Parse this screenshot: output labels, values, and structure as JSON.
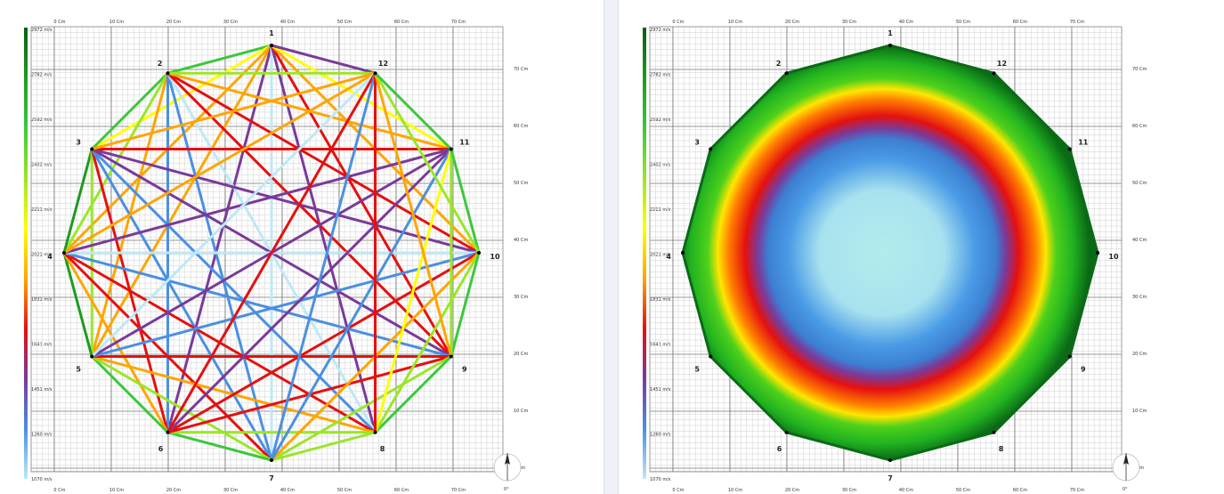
{
  "panels": [
    {
      "id": "left",
      "view": "ray-paths"
    },
    {
      "id": "right",
      "view": "velocity-tomogram"
    }
  ],
  "colorbar": {
    "labels": [
      "2972 m/s",
      "2782 m/s",
      "2592 m/s",
      "2402 m/s",
      "2211 m/s",
      "2021 m/s",
      "1831 m/s",
      "1641 m/s",
      "1451 m/s",
      "1260 m/s",
      "1070 m/s"
    ],
    "colors": [
      "#0a5e14",
      "#1e9a22",
      "#3cc83c",
      "#9be628",
      "#ffff00",
      "#ffa500",
      "#e51010",
      "#7a3a9a",
      "#4a90e2",
      "#bfe8f7"
    ]
  },
  "axes": {
    "x_ticks": [
      "0 Cm",
      "10 Cm",
      "20 Cm",
      "30 Cm",
      "40 Cm",
      "50 Cm",
      "60 Cm",
      "70 Cm"
    ],
    "y_ticks": [
      "70 Cm",
      "60 Cm",
      "50 Cm",
      "40 Cm",
      "30 Cm",
      "20 Cm",
      "10 Cm",
      "0 Cm"
    ]
  },
  "compass": {
    "label": "0°"
  },
  "nodes": [
    "1",
    "2",
    "3",
    "4",
    "5",
    "6",
    "7",
    "8",
    "9",
    "10",
    "11",
    "12"
  ],
  "rays": [
    {
      "a": 1,
      "b": 2,
      "v": 2450
    },
    {
      "a": 1,
      "b": 3,
      "v": 2150
    },
    {
      "a": 1,
      "b": 4,
      "v": 2000
    },
    {
      "a": 1,
      "b": 5,
      "v": 1930
    },
    {
      "a": 1,
      "b": 6,
      "v": 1480
    },
    {
      "a": 1,
      "b": 7,
      "v": 1250
    },
    {
      "a": 1,
      "b": 8,
      "v": 1500
    },
    {
      "a": 1,
      "b": 9,
      "v": 1650
    },
    {
      "a": 1,
      "b": 10,
      "v": 2000
    },
    {
      "a": 1,
      "b": 11,
      "v": 2150
    },
    {
      "a": 1,
      "b": 12,
      "v": 1620
    },
    {
      "a": 2,
      "b": 3,
      "v": 2550
    },
    {
      "a": 2,
      "b": 4,
      "v": 2350
    },
    {
      "a": 2,
      "b": 5,
      "v": 1900
    },
    {
      "a": 2,
      "b": 6,
      "v": 1380
    },
    {
      "a": 2,
      "b": 7,
      "v": 1420
    },
    {
      "a": 2,
      "b": 8,
      "v": 1100
    },
    {
      "a": 2,
      "b": 9,
      "v": 1820
    },
    {
      "a": 2,
      "b": 10,
      "v": 1780
    },
    {
      "a": 2,
      "b": 11,
      "v": 2000
    },
    {
      "a": 2,
      "b": 12,
      "v": 2400
    },
    {
      "a": 3,
      "b": 4,
      "v": 2600
    },
    {
      "a": 3,
      "b": 5,
      "v": 2350
    },
    {
      "a": 3,
      "b": 6,
      "v": 1700
    },
    {
      "a": 3,
      "b": 7,
      "v": 1430
    },
    {
      "a": 3,
      "b": 8,
      "v": 1360
    },
    {
      "a": 3,
      "b": 9,
      "v": 1640
    },
    {
      "a": 3,
      "b": 10,
      "v": 1620
    },
    {
      "a": 3,
      "b": 11,
      "v": 1800
    },
    {
      "a": 3,
      "b": 12,
      "v": 1950
    },
    {
      "a": 4,
      "b": 5,
      "v": 2600
    },
    {
      "a": 4,
      "b": 6,
      "v": 2000
    },
    {
      "a": 4,
      "b": 7,
      "v": 1780
    },
    {
      "a": 4,
      "b": 8,
      "v": 1700
    },
    {
      "a": 4,
      "b": 9,
      "v": 1380
    },
    {
      "a": 4,
      "b": 10,
      "v": 1180
    },
    {
      "a": 4,
      "b": 11,
      "v": 1620
    },
    {
      "a": 4,
      "b": 12,
      "v": 1950
    },
    {
      "a": 5,
      "b": 6,
      "v": 2500
    },
    {
      "a": 5,
      "b": 7,
      "v": 2250
    },
    {
      "a": 5,
      "b": 8,
      "v": 1850
    },
    {
      "a": 5,
      "b": 9,
      "v": 1780
    },
    {
      "a": 5,
      "b": 10,
      "v": 1300
    },
    {
      "a": 5,
      "b": 11,
      "v": 1640
    },
    {
      "a": 5,
      "b": 12,
      "v": 1250
    },
    {
      "a": 6,
      "b": 7,
      "v": 2450
    },
    {
      "a": 6,
      "b": 8,
      "v": 2300
    },
    {
      "a": 6,
      "b": 9,
      "v": 1780
    },
    {
      "a": 6,
      "b": 10,
      "v": 1720
    },
    {
      "a": 6,
      "b": 11,
      "v": 1620
    },
    {
      "a": 6,
      "b": 12,
      "v": 1800
    },
    {
      "a": 7,
      "b": 8,
      "v": 2400
    },
    {
      "a": 7,
      "b": 9,
      "v": 2350
    },
    {
      "a": 7,
      "b": 10,
      "v": 1900
    },
    {
      "a": 7,
      "b": 11,
      "v": 1380
    },
    {
      "a": 7,
      "b": 12,
      "v": 1300
    },
    {
      "a": 8,
      "b": 9,
      "v": 2500
    },
    {
      "a": 8,
      "b": 10,
      "v": 2250
    },
    {
      "a": 8,
      "b": 11,
      "v": 2100
    },
    {
      "a": 8,
      "b": 12,
      "v": 1800
    },
    {
      "a": 9,
      "b": 10,
      "v": 2550
    },
    {
      "a": 9,
      "b": 11,
      "v": 2300
    },
    {
      "a": 9,
      "b": 12,
      "v": 1950
    },
    {
      "a": 10,
      "b": 11,
      "v": 2500
    },
    {
      "a": 10,
      "b": 12,
      "v": 2300
    },
    {
      "a": 11,
      "b": 12,
      "v": 2450
    }
  ],
  "tomogram": {
    "boundary_level": 2700,
    "center_level": 1070
  }
}
